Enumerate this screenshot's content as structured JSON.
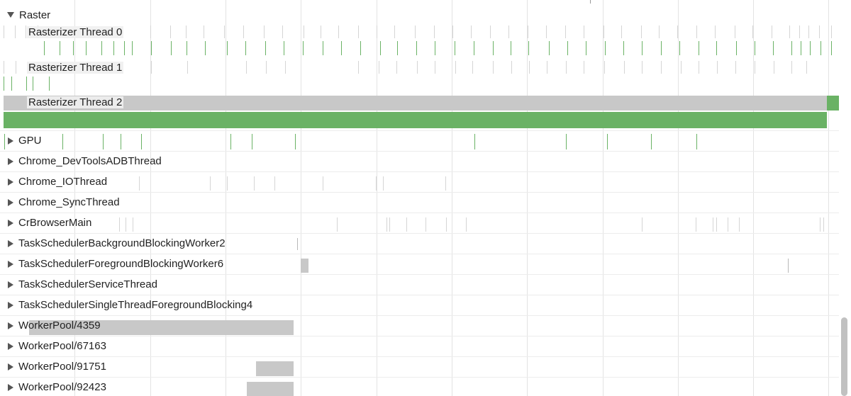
{
  "window": {
    "title": ""
  },
  "raster_group": {
    "label": "Raster",
    "expanded": true,
    "threads": [
      {
        "label": "Rasterizer Thread 0"
      },
      {
        "label": "Rasterizer Thread 1"
      },
      {
        "label": "Rasterizer Thread 2"
      }
    ]
  },
  "thread_tracks": [
    {
      "label": "GPU",
      "expanded": false
    },
    {
      "label": "Chrome_DevToolsADBThread",
      "expanded": false
    },
    {
      "label": "Chrome_IOThread",
      "expanded": false
    },
    {
      "label": "Chrome_SyncThread",
      "expanded": false
    },
    {
      "label": "CrBrowserMain",
      "expanded": false
    },
    {
      "label": "TaskSchedulerBackgroundBlockingWorker2",
      "expanded": false
    },
    {
      "label": "TaskSchedulerForegroundBlockingWorker6",
      "expanded": false
    },
    {
      "label": "TaskSchedulerServiceThread",
      "expanded": false
    },
    {
      "label": "TaskSchedulerSingleThreadForegroundBlocking4",
      "expanded": false
    },
    {
      "label": "WorkerPool/4359",
      "expanded": false
    },
    {
      "label": "WorkerPool/67163",
      "expanded": false
    },
    {
      "label": "WorkerPool/91751",
      "expanded": false
    },
    {
      "label": "WorkerPool/92423",
      "expanded": false
    }
  ],
  "colors": {
    "slice_green": "#6ab265",
    "slice_gray": "#c8c8c8",
    "grid": "#e3e3e3",
    "scrollbar": "#c1c1c1"
  },
  "icons": {
    "expand": "triangle-right-icon",
    "collapse": "triangle-down-icon"
  }
}
